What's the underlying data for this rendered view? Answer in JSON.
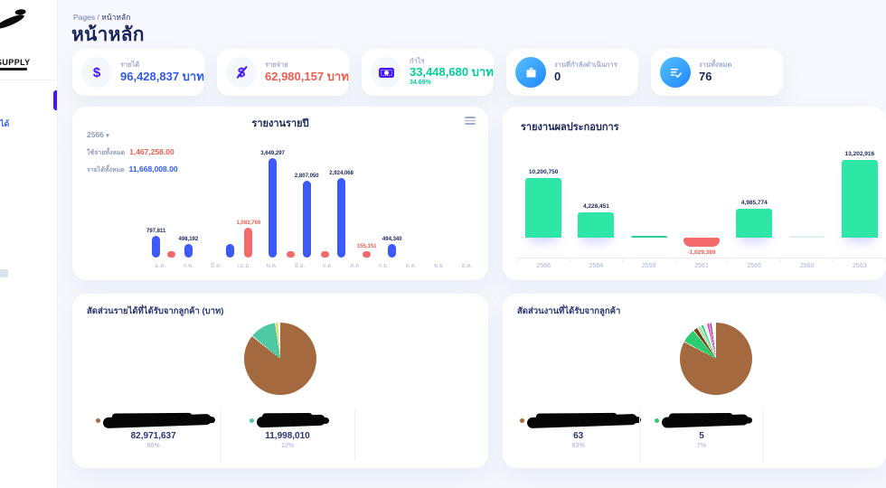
{
  "colors": {
    "primary_blue": "#3158f0",
    "bar_blue": "#3d5af8",
    "danger_red": "#ee5d50",
    "bar_red": "#f4696a",
    "success_green": "#05cd99",
    "bar_green": "#2ee6a6",
    "accent_indigo": "#4318ff",
    "pie_brown": "#a5693f",
    "pie_teal": "#4ec9a4"
  },
  "sidebar": {
    "logo_text": "SUPPLY",
    "active_fragment": "ได้"
  },
  "breadcrumb": {
    "root": "Pages",
    "separator": "/",
    "current": "หน้าหลัก"
  },
  "page": {
    "title": "หน้าหลัก"
  },
  "stat_cards": [
    {
      "label": "รายได้",
      "value": "96,428,837 บาท"
    },
    {
      "label": "รายจ่าย",
      "value": "62,980,157 บาท"
    },
    {
      "label": "กำไร",
      "value": "33,448,680 บาท",
      "sub": "34.69%"
    },
    {
      "label": "งานที่กำลังดำเนินการ",
      "value": "0"
    },
    {
      "label": "งานทั้งหมด",
      "value": "76"
    }
  ],
  "yearly_report": {
    "title": "รายงานรายปี",
    "year": "2566",
    "totals": [
      {
        "label": "ใช้จ่ายทั้งหมด",
        "value": "1,467,258.00",
        "color": "#ee5d50"
      },
      {
        "label": "รายได้ทั้งหมด",
        "value": "11,668,008.00",
        "color": "#3158f0"
      }
    ]
  },
  "performance_report": {
    "title": "รายงานผลประกอบการ"
  },
  "revenue_pie": {
    "title": "สัดส่วนรายได้ที่ได้รับจากลูกค้า (บาท)"
  },
  "jobs_pie": {
    "title": "สัดส่วนงานที่ได้รับจากลูกค้า"
  },
  "chart_data": [
    {
      "type": "bar",
      "title": "รายงานรายปี",
      "categories": [
        "ม.ค.",
        "ก.พ.",
        "มี.ค.",
        "เม.ย.",
        "พ.ค.",
        "มิ.ย.",
        "ก.ค.",
        "ส.ค.",
        "ก.ย.",
        "ต.ค.",
        "พ.ย.",
        "ธ.ค."
      ],
      "series": [
        {
          "name": "รายได้ทั้งหมด",
          "color": "#3d5af8",
          "label_color": "#1b2559",
          "values": [
            797811,
            498192,
            null,
            490000,
            3649297,
            2807050,
            2924068,
            null,
            494340,
            null,
            null,
            null
          ],
          "labels": [
            "797,811",
            "498,192",
            null,
            null,
            "3,649,297",
            "2,807,050",
            "2,924,068",
            null,
            "494,340",
            null,
            null,
            null
          ]
        },
        {
          "name": "ใช้จ่ายทั้งหมด",
          "color": "#f4696a",
          "label_color": "#ee5d50",
          "values": [
            76000,
            null,
            null,
            1083760,
            76000,
            76000,
            null,
            155151,
            null,
            null,
            null,
            null
          ],
          "labels": [
            null,
            null,
            null,
            "1,083,760",
            null,
            null,
            null,
            "155,151",
            null,
            null,
            null,
            null
          ]
        }
      ],
      "ylim": [
        0,
        3649297
      ],
      "grid": false,
      "legend_position": "top-left"
    },
    {
      "type": "bar",
      "title": "รายงานผลประกอบการ",
      "categories": [
        "2566",
        "2564",
        "2559",
        "2561",
        "2565",
        "2560",
        "2563"
      ],
      "values": [
        10200750,
        4228451,
        250000,
        -1029389,
        4985774,
        80000,
        13202916
      ],
      "labels": [
        "10,200,750",
        "4,228,451",
        null,
        "-1,029,389",
        "4,985,774",
        null,
        "13,202,916"
      ],
      "colors": [
        "#2ee6a6",
        "#2ee6a6",
        "#29cf92",
        "#f4696a",
        "#2ee6a6",
        "#d9f6eb",
        "#2ee6a6"
      ],
      "ylim": [
        -1500000,
        13202916
      ],
      "grid": false
    },
    {
      "type": "pie",
      "title": "สัดส่วนรายได้ที่ได้รับจากลูกค้า (บาท)",
      "slices": [
        {
          "label": "",
          "redacted": true,
          "redact_width": 120,
          "value": 82971637,
          "value_display": "82,971,637",
          "pct": "86%",
          "frac": 86,
          "color": "#a5693f",
          "legend": true
        },
        {
          "label": "",
          "redacted": true,
          "redact_width": 76,
          "value": 11998010,
          "value_display": "11,998,010",
          "pct": "12%",
          "frac": 12,
          "color": "#4ec9a4",
          "legend": true
        },
        {
          "label": "",
          "redacted": false,
          "value": null,
          "pct": "~1%",
          "frac": 1.2,
          "color": "#e9d34f",
          "legend": false
        },
        {
          "label": "",
          "redacted": false,
          "value": null,
          "pct": "~1%",
          "frac": 0.8,
          "color": "#f3f0df",
          "legend": false
        }
      ]
    },
    {
      "type": "pie",
      "title": "สัดส่วนงานที่ได้รับจากลูกค้า",
      "slices": [
        {
          "label": "",
          "redacted": true,
          "redact_width": 122,
          "value": 63,
          "value_display": "63",
          "pct": "83%",
          "frac": 83,
          "color": "#a5693f",
          "legend": true
        },
        {
          "label": "",
          "redacted": true,
          "redact_width": 96,
          "value": 5,
          "value_display": "5",
          "pct": "7%",
          "frac": 6.5,
          "color": "#2ecc71",
          "legend": true
        },
        {
          "label": "",
          "redacted": false,
          "value": null,
          "pct": "~2%",
          "frac": 2.0,
          "color": "#7a3b10",
          "legend": false
        },
        {
          "label": "",
          "redacted": false,
          "value": null,
          "pct": "~2%",
          "frac": 1.8,
          "color": "#a8e6b0",
          "legend": false
        },
        {
          "label": "",
          "redacted": false,
          "value": null,
          "pct": "~1%",
          "frac": 1.2,
          "color": "#35d07a",
          "legend": false
        },
        {
          "label": "",
          "redacted": false,
          "value": null,
          "pct": "~1%",
          "frac": 1.5,
          "color": "#f6f5ef",
          "legend": false
        },
        {
          "label": "",
          "redacted": false,
          "value": null,
          "pct": "~1%",
          "frac": 1.3,
          "color": "#e34fb8",
          "legend": false
        },
        {
          "label": "",
          "redacted": false,
          "value": null,
          "pct": "~1%",
          "frac": 1.0,
          "color": "#8e44ad",
          "legend": false
        },
        {
          "label": "",
          "redacted": false,
          "value": null,
          "pct": "~2%",
          "frac": 1.7,
          "color": "#ffffff",
          "legend": false
        }
      ]
    }
  ]
}
